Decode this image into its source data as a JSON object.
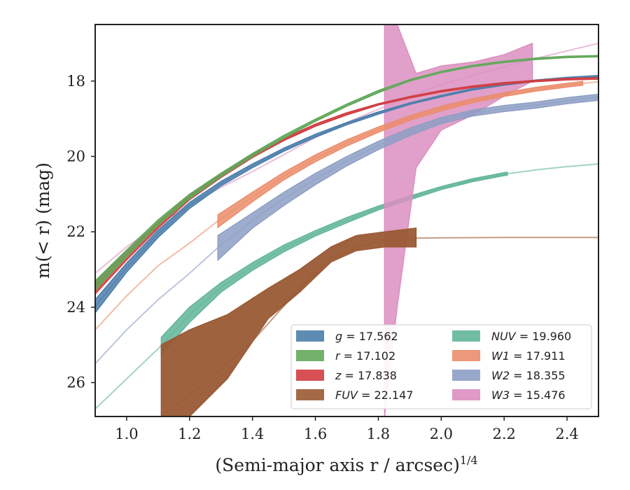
{
  "chart_data": {
    "type": "line",
    "xlabel": "(Semi-major axis r / arcsec)",
    "xlabel_superscript": "1/4",
    "ylabel": "m(< r) (mag)",
    "xlim": [
      0.9,
      2.5
    ],
    "ylim": [
      26.9,
      16.5
    ],
    "y_inverted": true,
    "grid": false,
    "legend_position": "lower-right",
    "xticks": [
      "1.0",
      "1.2",
      "1.4",
      "1.6",
      "1.8",
      "2.0",
      "2.2",
      "2.4"
    ],
    "xtick_values": [
      1.0,
      1.2,
      1.4,
      1.6,
      1.8,
      2.0,
      2.2,
      2.4
    ],
    "yticks": [
      "18",
      "20",
      "22",
      "24",
      "26"
    ],
    "ytick_values": [
      18,
      20,
      22,
      24,
      26
    ],
    "series": [
      {
        "key": "g",
        "legend_name": "g",
        "legend_value": "17.562",
        "color": "#4c7eab",
        "band": [
          [
            0.9,
            23.8,
            24.15
          ],
          [
            1.0,
            22.83,
            23.07
          ],
          [
            1.1,
            21.95,
            22.15
          ],
          [
            1.2,
            21.22,
            21.38
          ],
          [
            1.3,
            20.66,
            20.78
          ],
          [
            1.4,
            20.2,
            20.3
          ],
          [
            1.5,
            19.78,
            19.86
          ],
          [
            1.6,
            19.41,
            19.49
          ],
          [
            1.7,
            19.1,
            19.16
          ],
          [
            1.8,
            18.82,
            18.88
          ],
          [
            1.9,
            18.58,
            18.62
          ],
          [
            2.0,
            18.38,
            18.42
          ],
          [
            2.1,
            18.2,
            18.24
          ],
          [
            2.2,
            18.07,
            18.11
          ],
          [
            2.3,
            17.97,
            18.01
          ],
          [
            2.4,
            17.9,
            17.94
          ],
          [
            2.5,
            17.85,
            17.89
          ]
        ],
        "line": [
          [
            0.9,
            23.98
          ],
          [
            1.0,
            22.95
          ],
          [
            1.1,
            22.05
          ],
          [
            1.2,
            21.3
          ],
          [
            1.3,
            20.72
          ],
          [
            1.4,
            20.25
          ],
          [
            1.5,
            19.82
          ],
          [
            1.6,
            19.45
          ],
          [
            1.7,
            19.13
          ],
          [
            1.8,
            18.85
          ],
          [
            1.9,
            18.6
          ],
          [
            2.0,
            18.4
          ],
          [
            2.1,
            18.22
          ],
          [
            2.2,
            18.09
          ],
          [
            2.3,
            17.99
          ],
          [
            2.4,
            17.92
          ],
          [
            2.5,
            17.87
          ]
        ],
        "line_extent": [
          0.9,
          2.5
        ]
      },
      {
        "key": "r",
        "legend_name": "r",
        "legend_value": "17.102",
        "color": "#62a95c",
        "band": [
          [
            0.9,
            23.3,
            23.55
          ],
          [
            1.0,
            22.48,
            22.66
          ],
          [
            1.1,
            21.68,
            21.82
          ],
          [
            1.2,
            21.0,
            21.12
          ],
          [
            1.3,
            20.44,
            20.54
          ],
          [
            1.4,
            19.92,
            20.0
          ],
          [
            1.5,
            19.44,
            19.52
          ],
          [
            1.6,
            19.01,
            19.07
          ],
          [
            1.7,
            18.61,
            18.67
          ],
          [
            1.8,
            18.25,
            18.31
          ],
          [
            1.9,
            17.96,
            18.0
          ],
          [
            2.0,
            17.74,
            17.78
          ],
          [
            2.1,
            17.58,
            17.62
          ],
          [
            2.2,
            17.47,
            17.51
          ],
          [
            2.3,
            17.39,
            17.43
          ],
          [
            2.4,
            17.34,
            17.38
          ],
          [
            2.5,
            17.32,
            17.36
          ]
        ],
        "line": [
          [
            0.9,
            23.42
          ],
          [
            1.0,
            22.57
          ],
          [
            1.1,
            21.75
          ],
          [
            1.2,
            21.06
          ],
          [
            1.3,
            20.49
          ],
          [
            1.4,
            19.96
          ],
          [
            1.5,
            19.48
          ],
          [
            1.6,
            19.04
          ],
          [
            1.7,
            18.64
          ],
          [
            1.8,
            18.28
          ],
          [
            1.9,
            17.98
          ],
          [
            2.0,
            17.76
          ],
          [
            2.1,
            17.6
          ],
          [
            2.2,
            17.49
          ],
          [
            2.3,
            17.41
          ],
          [
            2.4,
            17.36
          ],
          [
            2.5,
            17.34
          ]
        ],
        "line_extent": [
          0.9,
          2.5
        ]
      },
      {
        "key": "z",
        "legend_name": "z",
        "legend_value": "17.838",
        "color": "#d13d41",
        "band": [
          [
            0.9,
            23.3,
            23.65
          ],
          [
            1.0,
            22.53,
            22.75
          ],
          [
            1.1,
            21.74,
            21.9
          ],
          [
            1.2,
            21.03,
            21.15
          ],
          [
            1.3,
            20.46,
            20.56
          ],
          [
            1.4,
            19.95,
            20.03
          ],
          [
            1.5,
            19.52,
            19.58
          ],
          [
            1.6,
            19.14,
            19.2
          ],
          [
            1.7,
            18.84,
            18.9
          ],
          [
            1.8,
            18.6,
            18.64
          ],
          [
            1.9,
            18.41,
            18.45
          ],
          [
            2.0,
            18.25,
            18.29
          ],
          [
            2.1,
            18.13,
            18.17
          ],
          [
            2.2,
            18.04,
            18.08
          ],
          [
            2.3,
            17.98,
            18.02
          ],
          [
            2.4,
            17.93,
            17.97
          ],
          [
            2.5,
            17.91,
            17.95
          ]
        ],
        "line": [
          [
            0.9,
            23.47
          ],
          [
            1.0,
            22.64
          ],
          [
            1.1,
            21.82
          ],
          [
            1.2,
            21.09
          ],
          [
            1.3,
            20.51
          ],
          [
            1.4,
            19.99
          ],
          [
            1.5,
            19.55
          ],
          [
            1.6,
            19.17
          ],
          [
            1.7,
            18.87
          ],
          [
            1.8,
            18.62
          ],
          [
            1.9,
            18.43
          ],
          [
            2.0,
            18.27
          ],
          [
            2.1,
            18.15
          ],
          [
            2.2,
            18.06
          ],
          [
            2.3,
            18.0
          ],
          [
            2.4,
            17.95
          ],
          [
            2.5,
            17.93
          ]
        ],
        "line_extent": [
          0.9,
          2.5
        ]
      },
      {
        "key": "FUV",
        "legend_name": "FUV",
        "legend_value": "22.147",
        "color": "#9a5a34",
        "band": [
          [
            1.11,
            25.0,
            26.9
          ],
          [
            1.2,
            24.6,
            26.9
          ],
          [
            1.32,
            24.2,
            25.9
          ],
          [
            1.45,
            23.5,
            24.3
          ],
          [
            1.55,
            23.0,
            23.6
          ],
          [
            1.65,
            22.4,
            22.8
          ],
          [
            1.73,
            22.1,
            22.5
          ],
          [
            1.82,
            22.0,
            22.4
          ],
          [
            1.92,
            21.9,
            22.4
          ]
        ],
        "line": [
          [
            1.11,
            26.9
          ],
          [
            1.25,
            26.0
          ],
          [
            1.4,
            24.9
          ],
          [
            1.55,
            23.5
          ],
          [
            1.65,
            22.7
          ],
          [
            1.73,
            22.4
          ],
          [
            1.82,
            22.23
          ],
          [
            1.92,
            22.17
          ],
          [
            2.0,
            22.16
          ],
          [
            2.2,
            22.15
          ],
          [
            2.5,
            22.15
          ]
        ],
        "line_extent": [
          1.11,
          2.5
        ]
      },
      {
        "key": "NUV",
        "legend_name": "NUV",
        "legend_value": "19.960",
        "color": "#62b59a",
        "band": [
          [
            1.11,
            24.8,
            25.25
          ],
          [
            1.2,
            24.0,
            24.4
          ],
          [
            1.3,
            23.35,
            23.6
          ],
          [
            1.4,
            22.82,
            23.02
          ],
          [
            1.5,
            22.35,
            22.53
          ],
          [
            1.6,
            21.97,
            22.11
          ],
          [
            1.7,
            21.62,
            21.76
          ],
          [
            1.8,
            21.32,
            21.42
          ],
          [
            1.9,
            21.05,
            21.15
          ],
          [
            2.0,
            20.8,
            20.88
          ],
          [
            2.1,
            20.59,
            20.67
          ],
          [
            2.2,
            20.43,
            20.51
          ],
          [
            2.21,
            20.42,
            20.5
          ]
        ],
        "line": [
          [
            0.9,
            26.7
          ],
          [
            1.0,
            25.9
          ],
          [
            1.1,
            25.1
          ],
          [
            1.2,
            24.2
          ],
          [
            1.3,
            23.47
          ],
          [
            1.4,
            22.92
          ],
          [
            1.5,
            22.44
          ],
          [
            1.6,
            22.04
          ],
          [
            1.7,
            21.69
          ],
          [
            1.8,
            21.37
          ],
          [
            1.9,
            21.1
          ],
          [
            2.0,
            20.84
          ],
          [
            2.1,
            20.63
          ],
          [
            2.2,
            20.47
          ],
          [
            2.3,
            20.36
          ],
          [
            2.4,
            20.27
          ],
          [
            2.5,
            20.2
          ]
        ],
        "line_extent": [
          0.9,
          2.5
        ]
      },
      {
        "key": "W1",
        "legend_name": "W1",
        "legend_value": "17.911",
        "color": "#eb8d6b",
        "band": [
          [
            1.29,
            21.55,
            21.88
          ],
          [
            1.4,
            20.95,
            21.2
          ],
          [
            1.5,
            20.42,
            20.62
          ],
          [
            1.6,
            19.96,
            20.14
          ],
          [
            1.7,
            19.56,
            19.72
          ],
          [
            1.8,
            19.22,
            19.36
          ],
          [
            1.9,
            18.92,
            19.04
          ],
          [
            2.0,
            18.67,
            18.79
          ],
          [
            2.1,
            18.47,
            18.57
          ],
          [
            2.2,
            18.31,
            18.41
          ],
          [
            2.3,
            18.17,
            18.27
          ],
          [
            2.4,
            18.06,
            18.16
          ],
          [
            2.45,
            18.01,
            18.11
          ]
        ],
        "line": [
          [
            0.9,
            24.6
          ],
          [
            1.0,
            23.7
          ],
          [
            1.1,
            22.9
          ],
          [
            1.2,
            22.3
          ],
          [
            1.29,
            21.71
          ],
          [
            1.4,
            21.07
          ],
          [
            1.5,
            20.52
          ],
          [
            1.6,
            20.05
          ],
          [
            1.7,
            19.64
          ],
          [
            1.8,
            19.29
          ],
          [
            1.9,
            18.98
          ],
          [
            2.0,
            18.73
          ],
          [
            2.1,
            18.52
          ],
          [
            2.2,
            18.36
          ],
          [
            2.3,
            18.22
          ],
          [
            2.4,
            18.11
          ],
          [
            2.5,
            18.02
          ]
        ],
        "line_extent": [
          0.9,
          2.5
        ]
      },
      {
        "key": "W2",
        "legend_name": "W2",
        "legend_value": "18.355",
        "color": "#8d9fc4",
        "band": [
          [
            1.29,
            22.1,
            22.75
          ],
          [
            1.4,
            21.5,
            21.9
          ],
          [
            1.5,
            20.95,
            21.3
          ],
          [
            1.6,
            20.45,
            20.75
          ],
          [
            1.7,
            20.0,
            20.25
          ],
          [
            1.8,
            19.6,
            19.82
          ],
          [
            1.9,
            19.25,
            19.45
          ],
          [
            2.0,
            18.97,
            19.13
          ],
          [
            2.1,
            18.77,
            18.93
          ],
          [
            2.2,
            18.65,
            18.81
          ],
          [
            2.3,
            18.56,
            18.72
          ],
          [
            2.4,
            18.44,
            18.6
          ],
          [
            2.5,
            18.35,
            18.51
          ]
        ],
        "line": [
          [
            0.9,
            25.5
          ],
          [
            1.0,
            24.6
          ],
          [
            1.1,
            23.8
          ],
          [
            1.2,
            23.1
          ],
          [
            1.29,
            22.42
          ],
          [
            1.4,
            21.7
          ],
          [
            1.5,
            21.12
          ],
          [
            1.6,
            20.6
          ],
          [
            1.7,
            20.12
          ],
          [
            1.8,
            19.71
          ],
          [
            1.9,
            19.35
          ],
          [
            2.0,
            19.05
          ],
          [
            2.1,
            18.85
          ],
          [
            2.2,
            18.73
          ],
          [
            2.3,
            18.64
          ],
          [
            2.4,
            18.52
          ],
          [
            2.5,
            18.43
          ]
        ],
        "line_extent": [
          0.9,
          2.5
        ]
      },
      {
        "key": "W3",
        "legend_name": "W3",
        "legend_value": "15.476",
        "color": "#db8fc1",
        "band": [
          [
            1.82,
            16.5,
            26.9
          ],
          [
            1.86,
            16.5,
            24.0
          ],
          [
            1.92,
            17.8,
            20.3
          ],
          [
            2.0,
            17.6,
            19.3
          ],
          [
            2.1,
            17.5,
            18.9
          ],
          [
            2.2,
            17.3,
            18.4
          ],
          [
            2.29,
            17.0,
            18.0
          ]
        ],
        "line": [
          [
            0.9,
            23.1
          ],
          [
            1.0,
            22.4
          ],
          [
            1.1,
            21.8
          ],
          [
            1.2,
            21.3
          ],
          [
            1.3,
            20.82
          ],
          [
            1.4,
            20.4
          ],
          [
            1.5,
            19.95
          ],
          [
            1.6,
            19.5
          ],
          [
            1.7,
            19.1
          ],
          [
            1.8,
            18.75
          ],
          [
            1.9,
            18.4
          ],
          [
            2.0,
            18.1
          ],
          [
            2.1,
            17.85
          ],
          [
            2.2,
            17.62
          ],
          [
            2.3,
            17.4
          ],
          [
            2.4,
            17.2
          ],
          [
            2.5,
            17.0
          ]
        ],
        "line_extent": [
          0.9,
          2.5
        ]
      }
    ],
    "legend_order": [
      [
        "g",
        "r",
        "z",
        "FUV"
      ],
      [
        "NUV",
        "W1",
        "W2",
        "W3"
      ]
    ]
  }
}
